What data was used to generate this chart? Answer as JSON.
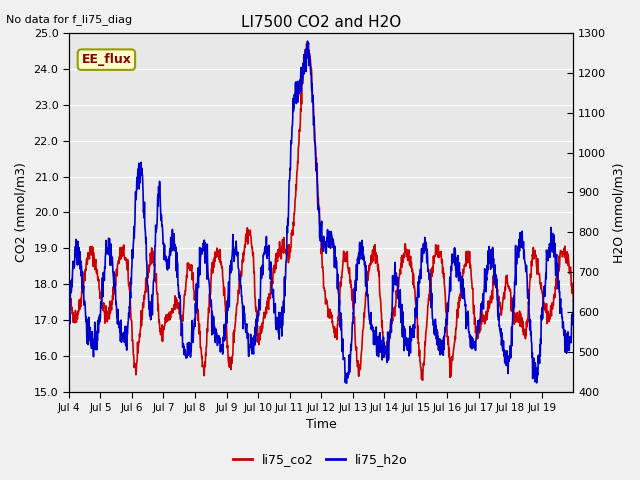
{
  "title": "LI7500 CO2 and H2O",
  "subtitle": "No data for f_li75_diag",
  "xlabel": "Time",
  "ylabel_left": "CO2 (mmol/m3)",
  "ylabel_right": "H2O (mmol/m3)",
  "ylim_left": [
    15.0,
    25.0
  ],
  "ylim_right": [
    400,
    1300
  ],
  "legend_labels": [
    "li75_co2",
    "li75_h2o"
  ],
  "legend_colors": [
    "#cc0000",
    "#0000cc"
  ],
  "annotation_text": "EE_flux",
  "background_color": "#e8e8e8",
  "grid_color": "#ffffff",
  "xtick_labels": [
    "Jul 4",
    "Jul 5",
    "Jul 6",
    "Jul 7",
    "Jul 8",
    "Jul 9",
    "Jul 10",
    "Jul 11",
    "Jul 12",
    "Jul 13",
    "Jul 14",
    "Jul 15",
    "Jul 16",
    "Jul 17",
    "Jul 18",
    "Jul 19"
  ],
  "co2_color": "#cc0000",
  "h2o_color": "#0000cc",
  "linewidth": 1.2,
  "n_days": 16,
  "yticks_left": [
    15.0,
    16.0,
    17.0,
    18.0,
    19.0,
    20.0,
    21.0,
    22.0,
    23.0,
    24.0,
    25.0
  ],
  "yticks_right": [
    400,
    500,
    600,
    700,
    800,
    900,
    1000,
    1100,
    1200,
    1300
  ],
  "fig_facecolor": "#f0f0f0"
}
